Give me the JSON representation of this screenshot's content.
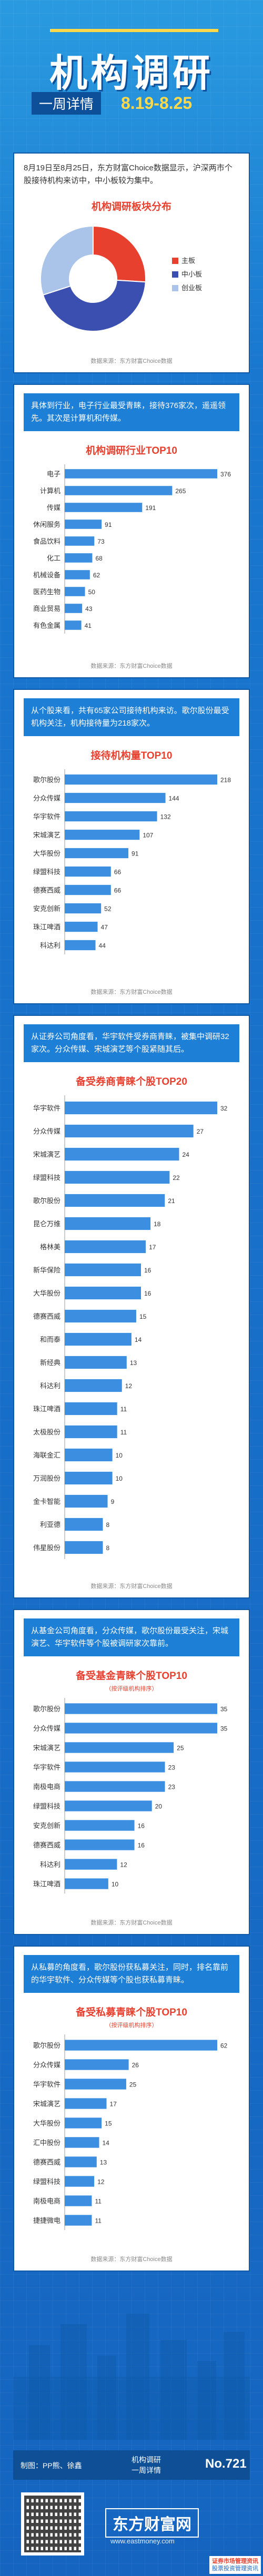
{
  "header": {
    "title": "机构调研",
    "subtitle": "一周详情",
    "date_range": "8.19-8.25"
  },
  "section1": {
    "intro": "8月19日至8月25日，东方财富Choice数据显示，沪深两市个股接待机构来访中，中小板较为集中。",
    "chart_title": "机构调研板块分布",
    "source": "数据来源：东方财富Choice数据"
  },
  "section2": {
    "intro": "具体到行业，电子行业最受青睐，接待376家次，遥遥领先。其次是计算机和传媒。",
    "chart_title": "机构调研行业TOP10",
    "source": "数据来源：东方财富Choice数据"
  },
  "section3": {
    "intro": "从个股来看，共有65家公司接待机构来访。歌尔股份最受机构关注，机构接待量为218家次。",
    "chart_title": "接待机构量TOP10",
    "source": "数据来源：东方财富Choice数据"
  },
  "section4": {
    "intro": "从证券公司角度看，华宇软件受券商青睐，被集中调研32家次。分众传媒、宋城演艺等个股紧随其后。",
    "chart_title": "备受券商青睐个股TOP20",
    "source": "数据来源：东方财富Choice数据"
  },
  "section5": {
    "intro": "从基金公司角度看，分众传媒，歌尔股份最受关注，宋城演艺、华宇软件等个股被调研家次靠前。",
    "chart_title": "备受基金青睐个股TOP10",
    "note": "（按评级机构排序）",
    "source": "数据来源：东方财富Choice数据"
  },
  "section6": {
    "intro": "从私募的角度看，歌尔股份获私募关注，同时，排名靠前的华宇软件、分众传媒等个股也获私募青睐。",
    "chart_title": "备受私募青睐个股TOP10",
    "note": "（按评级机构排序）",
    "source": "数据来源：东方财富Choice数据"
  },
  "footer": {
    "credits": "制图：PP熊、徐鑫",
    "series_line1": "机构调研",
    "series_line2": "一周详情",
    "issue_no": "No.721",
    "brand": "东方财富网",
    "brand_url": "www.eastmoney.com",
    "watermark_line1": "证券市场管理资讯",
    "watermark_line2": "股票投资管理资讯"
  },
  "colors": {
    "accent_red": "#e8402f",
    "bar_blue": "#3c8fe0",
    "pie_main": "#e8402f",
    "pie_sme": "#3a4fb0",
    "pie_gem": "#a9c4e8"
  },
  "chart_data": [
    {
      "type": "pie",
      "title": "机构调研板块分布",
      "legend_position": "right",
      "slices": [
        {
          "name": "主板",
          "value": 26,
          "color": "#e8402f"
        },
        {
          "name": "中小板",
          "value": 44,
          "color": "#3a4fb0"
        },
        {
          "name": "创业板",
          "value": 30,
          "color": "#a9c4e8"
        }
      ]
    },
    {
      "type": "bar",
      "orientation": "horizontal",
      "title": "机构调研行业TOP10",
      "categories": [
        "电子",
        "计算机",
        "传媒",
        "休闲服务",
        "食品饮料",
        "化工",
        "机械设备",
        "医药生物",
        "商业贸易",
        "有色金属"
      ],
      "values": [
        376,
        265,
        191,
        91,
        73,
        68,
        62,
        50,
        43,
        41
      ]
    },
    {
      "type": "bar",
      "orientation": "horizontal",
      "title": "接待机构量TOP10",
      "categories": [
        "歌尔股份",
        "分众传媒",
        "华宇软件",
        "宋城演艺",
        "大华股份",
        "绿盟科技",
        "德赛西威",
        "安克创新",
        "珠江啤酒",
        "科达利"
      ],
      "values": [
        218,
        144,
        132,
        107,
        91,
        66,
        66,
        52,
        47,
        44
      ]
    },
    {
      "type": "bar",
      "orientation": "horizontal",
      "title": "备受券商青睐个股TOP20",
      "categories": [
        "华宇软件",
        "分众传媒",
        "宋城演艺",
        "绿盟科技",
        "歌尔股份",
        "昆仑万维",
        "格林美",
        "新华保险",
        "大华股份",
        "德赛西威",
        "和而泰",
        "新经典",
        "科达利",
        "珠江啤酒",
        "太极股份",
        "海联金汇",
        "万润股份",
        "金卡智能",
        "利亚德",
        "伟星股份"
      ],
      "values": [
        32,
        27,
        24,
        22,
        21,
        18,
        17,
        16,
        16,
        15,
        14,
        13,
        12,
        11,
        11,
        10,
        10,
        9,
        8,
        8
      ]
    },
    {
      "type": "bar",
      "orientation": "horizontal",
      "title": "备受基金青睐个股TOP10",
      "categories": [
        "歌尔股份",
        "分众传媒",
        "宋城演艺",
        "华宇软件",
        "南极电商",
        "绿盟科技",
        "安克创新",
        "德赛西威",
        "科达利",
        "珠江啤酒"
      ],
      "values": [
        35,
        35,
        25,
        23,
        23,
        20,
        16,
        16,
        12,
        10
      ]
    },
    {
      "type": "bar",
      "orientation": "horizontal",
      "title": "备受私募青睐个股TOP10",
      "categories": [
        "歌尔股份",
        "分众传媒",
        "华宇软件",
        "宋城演艺",
        "大华股份",
        "汇中股份",
        "德赛西威",
        "绿盟科技",
        "南极电商",
        "捷捷微电"
      ],
      "values": [
        62,
        26,
        25,
        17,
        15,
        14,
        13,
        12,
        11,
        11
      ]
    }
  ]
}
